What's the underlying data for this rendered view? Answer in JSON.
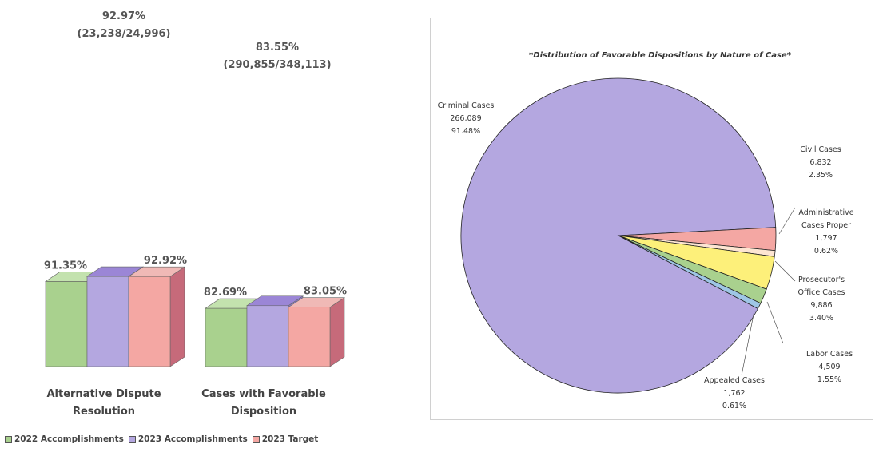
{
  "chart_data": [
    {
      "type": "bar",
      "categories": [
        "Alternative Dispute Resolution",
        "Cases with Favorable Disposition"
      ],
      "category_lines": [
        [
          "Alternative Dispute",
          "Resolution"
        ],
        [
          "Cases with Favorable",
          "Disposition"
        ]
      ],
      "series": [
        {
          "name": "2022 Accomplishments",
          "values": [
            91.35,
            82.69
          ],
          "labels": [
            "91.35%",
            "82.69%"
          ],
          "color": "#a9d18e",
          "side_color": "#7fae63",
          "top_color": "#c3e2ae"
        },
        {
          "name": "2023 Accomplishments",
          "values": [
            92.97,
            83.55
          ],
          "labels": [
            "",
            ""
          ],
          "color": "#b4a7e0",
          "side_color": "#8d7ccc",
          "top_color": "#9b86d6"
        },
        {
          "name": "2023 Target",
          "values": [
            92.92,
            83.05
          ],
          "labels": [
            "92.92%",
            "83.05%"
          ],
          "color": "#f4a7a3",
          "side_color": "#c66a7a",
          "top_color": "#f0b9b6"
        }
      ],
      "group_annotations": [
        [
          "92.97%",
          "(23,238/24,996)"
        ],
        [
          "83.55%",
          "(290,855/348,113)"
        ]
      ],
      "ylim": [
        0,
        100
      ],
      "grid": false,
      "legend": "bottom-left"
    },
    {
      "type": "pie",
      "title": "*Distribution of Favorable Dispositions by Nature of Case*",
      "slices": [
        {
          "label": "Criminal Cases",
          "value": 266089,
          "value_label": "266,089",
          "percent_label": "91.48%",
          "color": "#b4a7e0"
        },
        {
          "label": "Civil Cases",
          "value": 6832,
          "value_label": "6,832",
          "percent_label": "2.35%",
          "color": "#f4a7a3"
        },
        {
          "label": "Administrative Cases Proper",
          "value": 1797,
          "value_label": "1,797",
          "percent_label": "0.62%",
          "color": "#fde5d2"
        },
        {
          "label": "Prosecutor's Office Cases",
          "value": 9886,
          "value_label": "9,886",
          "percent_label": "3.40%",
          "color": "#fdf07a"
        },
        {
          "label": "Labor Cases",
          "value": 4509,
          "value_label": "4,509",
          "percent_label": "1.55%",
          "color": "#a9d18e"
        },
        {
          "label": "Appealed Cases",
          "value": 1762,
          "value_label": "1,762",
          "percent_label": "0.61%",
          "color": "#9ec6e6"
        }
      ]
    }
  ],
  "colors": {
    "green": "#a9d18e",
    "purple": "#b4a7e0",
    "pink": "#f4a7a3",
    "text": "#444444"
  }
}
